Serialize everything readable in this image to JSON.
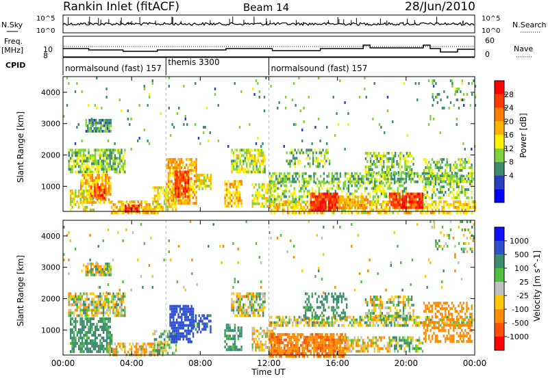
{
  "header": {
    "station": "Rankin Inlet (fitACF)",
    "beam": "Beam 14",
    "date": "28/Jun/2010"
  },
  "noise_panel": {
    "left_label": "N.Sky",
    "left_ticks": [
      "10^5",
      "10^0"
    ],
    "right_label": "N.Search",
    "right_ticks": [
      "10^5",
      "10^0"
    ]
  },
  "freq_panel": {
    "left_label_1": "Freq.",
    "left_label_2": "[MHz]",
    "left_ticks": [
      "10",
      "8"
    ],
    "right_label": "Nave",
    "right_ticks": [
      "60",
      "0"
    ]
  },
  "cpid": {
    "label": "CPID",
    "segments": [
      {
        "start_h": 0,
        "end_h": 6,
        "name": "normalsound (fast) 157"
      },
      {
        "start_h": 6,
        "end_h": 12,
        "name": "themis 3300"
      },
      {
        "start_h": 12,
        "end_h": 24,
        "name": "normalsound (fast) 157"
      }
    ]
  },
  "axes": {
    "xlabel": "Time UT",
    "ylabel": "Slant Range [km]",
    "xticks": [
      "00:00",
      "04:00",
      "08:00",
      "12:00",
      "16:00",
      "20:00",
      "00:00"
    ],
    "yticks": [
      "1000",
      "2000",
      "3000",
      "4000"
    ]
  },
  "power_colorbar": {
    "label": "Power [dB]",
    "ticks": [
      "28",
      "24",
      "20",
      "16",
      "12",
      "8",
      "4"
    ],
    "colors": [
      "#ff0000",
      "#ff3a00",
      "#ff7e00",
      "#ffb400",
      "#fff000",
      "#7ed23c",
      "#3c8c6e",
      "#2a3fbf",
      "#0000ff"
    ]
  },
  "velocity_colorbar": {
    "label": "Velocity [m s^-1]",
    "ticks": [
      "1000",
      "500",
      "100",
      "25",
      "-25",
      "-100",
      "-500",
      "-1000"
    ],
    "colors": [
      "#1010ff",
      "#3050d0",
      "#3c8c6e",
      "#50c040",
      "#c0c0c0",
      "#ffc800",
      "#ff8c00",
      "#ff5000",
      "#ff0000"
    ]
  },
  "chart_data": [
    {
      "type": "heatmap",
      "title": "Power [dB]",
      "xlabel": "Time UT",
      "ylabel": "Slant Range [km]",
      "xlim": [
        0,
        24
      ],
      "ylim": [
        200,
        4500
      ],
      "zlim": [
        0,
        30
      ],
      "blobs": [
        {
          "t0": 0.3,
          "t1": 3.6,
          "r0": 1500,
          "r1": 2200,
          "value": 10,
          "density": 0.75
        },
        {
          "t0": 1.3,
          "t1": 2.8,
          "r0": 2800,
          "r1": 3150,
          "value": 7,
          "density": 0.8
        },
        {
          "t0": 1.0,
          "t1": 2.8,
          "r0": 500,
          "r1": 1400,
          "value": 18,
          "density": 0.75
        },
        {
          "t0": 1.6,
          "t1": 2.4,
          "r0": 600,
          "r1": 1100,
          "value": 25,
          "density": 0.7
        },
        {
          "t0": 0.4,
          "t1": 1.8,
          "r0": 250,
          "r1": 900,
          "value": 14,
          "density": 0.6
        },
        {
          "t0": 2.8,
          "t1": 5.8,
          "r0": 200,
          "r1": 550,
          "value": 18,
          "density": 0.6
        },
        {
          "t0": 3.6,
          "t1": 4.4,
          "r0": 200,
          "r1": 420,
          "value": 26,
          "density": 0.7
        },
        {
          "t0": 5.2,
          "t1": 6.6,
          "r0": 300,
          "r1": 1000,
          "value": 14,
          "density": 0.6
        },
        {
          "t0": 6.0,
          "t1": 7.8,
          "r0": 500,
          "r1": 1900,
          "value": 18,
          "density": 0.75
        },
        {
          "t0": 6.5,
          "t1": 7.3,
          "r0": 700,
          "r1": 1500,
          "value": 25,
          "density": 0.75
        },
        {
          "t0": 7.8,
          "t1": 8.6,
          "r0": 900,
          "r1": 1400,
          "value": 14,
          "density": 0.7
        },
        {
          "t0": 9.4,
          "t1": 10.4,
          "r0": 400,
          "r1": 1200,
          "value": 18,
          "density": 0.65
        },
        {
          "t0": 9.8,
          "t1": 11.8,
          "r0": 1500,
          "r1": 2200,
          "value": 12,
          "density": 0.7
        },
        {
          "t0": 11.0,
          "t1": 12.4,
          "r0": 400,
          "r1": 1100,
          "value": 13,
          "density": 0.6
        },
        {
          "t0": 12.0,
          "t1": 23.9,
          "r0": 1150,
          "r1": 1450,
          "value": 9,
          "density": 0.6
        },
        {
          "t0": 12.0,
          "t1": 20.0,
          "r0": 500,
          "r1": 1150,
          "value": 11,
          "density": 0.45
        },
        {
          "t0": 12.0,
          "t1": 24.0,
          "r0": 200,
          "r1": 550,
          "value": 16,
          "density": 0.6
        },
        {
          "t0": 14.4,
          "t1": 16.0,
          "r0": 200,
          "r1": 800,
          "value": 28,
          "density": 0.9
        },
        {
          "t0": 16.0,
          "t1": 17.8,
          "r0": 300,
          "r1": 700,
          "value": 20,
          "density": 0.7
        },
        {
          "t0": 17.6,
          "t1": 20.4,
          "r0": 1400,
          "r1": 2100,
          "value": 10,
          "density": 0.5
        },
        {
          "t0": 19.0,
          "t1": 21.0,
          "r0": 300,
          "r1": 800,
          "value": 26,
          "density": 0.85
        },
        {
          "t0": 21.0,
          "t1": 23.8,
          "r0": 600,
          "r1": 1900,
          "value": 10,
          "density": 0.5
        },
        {
          "t0": 13.0,
          "t1": 15.5,
          "r0": 1600,
          "r1": 2200,
          "value": 9,
          "density": 0.35
        },
        {
          "t0": 21.5,
          "t1": 24.0,
          "r0": 3500,
          "r1": 4500,
          "value": 8,
          "density": 0.15
        },
        {
          "t0": 0.0,
          "t1": 24.0,
          "r0": 2200,
          "r1": 4500,
          "value": 8,
          "density": 0.02
        }
      ]
    },
    {
      "type": "heatmap",
      "title": "Velocity [m s^-1]",
      "xlabel": "Time UT",
      "ylabel": "Slant Range [km]",
      "xlim": [
        0,
        24
      ],
      "ylim": [
        200,
        4500
      ],
      "zlim": [
        -1000,
        1000
      ],
      "blobs": [
        {
          "t0": 0.3,
          "t1": 3.6,
          "r0": 1500,
          "r1": 2200,
          "value": 0,
          "density": 0.7
        },
        {
          "t0": 1.3,
          "t1": 2.8,
          "r0": 2800,
          "r1": 3150,
          "value": 0,
          "density": 0.8
        },
        {
          "t0": 0.4,
          "t1": 2.8,
          "r0": 300,
          "r1": 1400,
          "value": 200,
          "density": 0.65
        },
        {
          "t0": 2.6,
          "t1": 5.8,
          "r0": 200,
          "r1": 600,
          "value": -80,
          "density": 0.55
        },
        {
          "t0": 5.2,
          "t1": 6.6,
          "r0": 300,
          "r1": 1000,
          "value": 60,
          "density": 0.55
        },
        {
          "t0": 6.2,
          "t1": 7.6,
          "r0": 600,
          "r1": 1800,
          "value": 800,
          "density": 0.75
        },
        {
          "t0": 7.6,
          "t1": 8.6,
          "r0": 900,
          "r1": 1500,
          "value": 600,
          "density": 0.6
        },
        {
          "t0": 9.4,
          "t1": 10.4,
          "r0": 400,
          "r1": 1200,
          "value": 150,
          "density": 0.6
        },
        {
          "t0": 9.8,
          "t1": 11.8,
          "r0": 1500,
          "r1": 2200,
          "value": 0,
          "density": 0.65
        },
        {
          "t0": 11.0,
          "t1": 12.4,
          "r0": 400,
          "r1": 1100,
          "value": -60,
          "density": 0.55
        },
        {
          "t0": 12.0,
          "t1": 23.9,
          "r0": 1150,
          "r1": 1450,
          "value": 0,
          "density": 0.6
        },
        {
          "t0": 12.0,
          "t1": 16.5,
          "r0": 200,
          "r1": 900,
          "value": -450,
          "density": 0.8
        },
        {
          "t0": 16.0,
          "t1": 19.0,
          "r0": 300,
          "r1": 800,
          "value": -60,
          "density": 0.5
        },
        {
          "t0": 14.0,
          "t1": 16.5,
          "r0": 1400,
          "r1": 2200,
          "value": 200,
          "density": 0.45
        },
        {
          "t0": 17.6,
          "t1": 20.4,
          "r0": 1400,
          "r1": 2100,
          "value": 0,
          "density": 0.5
        },
        {
          "t0": 19.0,
          "t1": 21.0,
          "r0": 300,
          "r1": 800,
          "value": 80,
          "density": 0.6
        },
        {
          "t0": 21.0,
          "t1": 23.8,
          "r0": 600,
          "r1": 1900,
          "value": -350,
          "density": 0.5
        },
        {
          "t0": 21.5,
          "t1": 24.0,
          "r0": 3500,
          "r1": 4500,
          "value": 50,
          "density": 0.15
        },
        {
          "t0": 0.0,
          "t1": 24.0,
          "r0": 2200,
          "r1": 4500,
          "value": 0,
          "density": 0.02
        }
      ]
    }
  ]
}
